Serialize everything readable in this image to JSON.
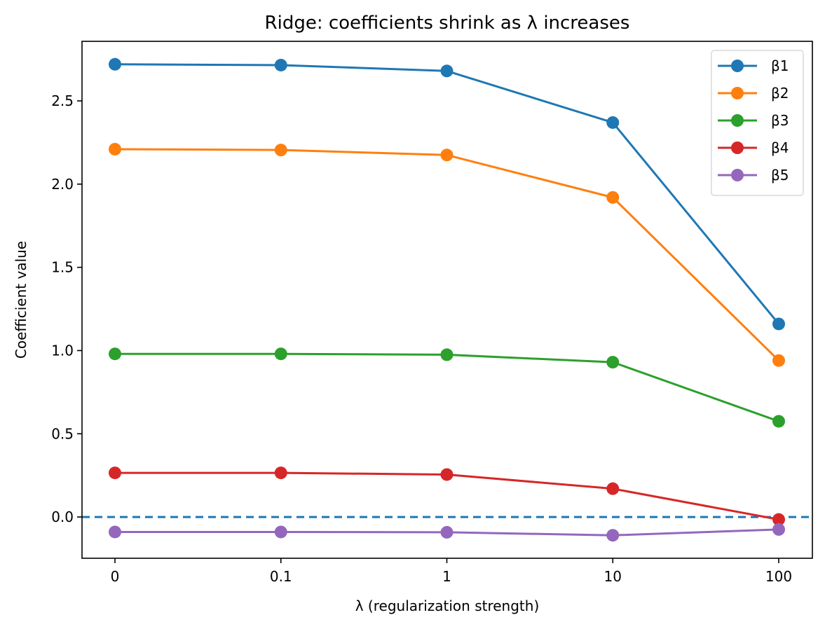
{
  "chart_data": {
    "type": "line",
    "title": "Ridge: coefficients shrink as λ increases",
    "xlabel": "λ (regularization strength)",
    "ylabel": "Coefficient value",
    "categories": [
      "0",
      "0.1",
      "1",
      "10",
      "100"
    ],
    "ylim": [
      -0.248,
      2.858
    ],
    "yticks": [
      0.0,
      0.5,
      1.0,
      1.5,
      2.0,
      2.5
    ],
    "ytick_labels": [
      "0.0",
      "0.5",
      "1.0",
      "1.5",
      "2.0",
      "2.5"
    ],
    "grid": false,
    "legend_position": "top-right",
    "reference_line": {
      "y": 0.0,
      "style": "dashed",
      "color": "#1f77b4"
    },
    "series": [
      {
        "name": "β1",
        "color": "#1f77b4",
        "values": [
          2.72,
          2.715,
          2.68,
          2.37,
          1.16
        ]
      },
      {
        "name": "β2",
        "color": "#ff7f0e",
        "values": [
          2.21,
          2.205,
          2.175,
          1.92,
          0.94
        ]
      },
      {
        "name": "β3",
        "color": "#2ca02c",
        "values": [
          0.98,
          0.98,
          0.975,
          0.93,
          0.575
        ]
      },
      {
        "name": "β4",
        "color": "#d62728",
        "values": [
          0.265,
          0.265,
          0.255,
          0.17,
          -0.015
        ]
      },
      {
        "name": "β5",
        "color": "#9467bd",
        "values": [
          -0.09,
          -0.09,
          -0.092,
          -0.11,
          -0.075
        ]
      }
    ]
  }
}
